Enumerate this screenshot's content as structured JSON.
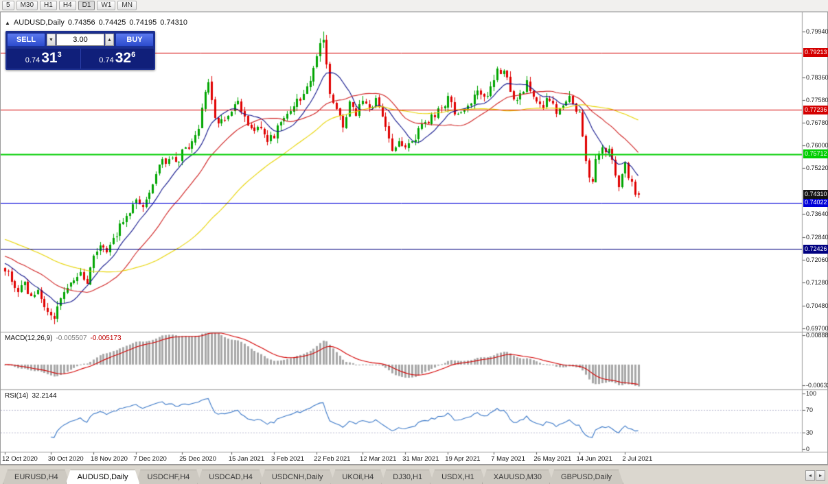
{
  "toolbar": {
    "timeframes": [
      "5",
      "M30",
      "H1",
      "H4",
      "D1",
      "W1",
      "MN"
    ],
    "active": "D1"
  },
  "symbol_line": {
    "marker": "▲",
    "symbol": "AUDUSD,Daily",
    "open": "0.74356",
    "high": "0.74425",
    "low": "0.74195",
    "close": "0.74310"
  },
  "trade_panel": {
    "sell_label": "SELL",
    "buy_label": "BUY",
    "lot_size": "3.00",
    "spin_down": "▼",
    "spin_up": "▲",
    "sell_price": {
      "base": "0.74",
      "pips": "31",
      "fraction": "3"
    },
    "buy_price": {
      "base": "0.74",
      "pips": "32",
      "fraction": "6"
    }
  },
  "price_scale": {
    "ticks": [
      "0.79940",
      "0.78360",
      "0.77580",
      "0.76780",
      "0.76000",
      "0.75220",
      "0.73640",
      "0.72840",
      "0.72060",
      "0.71280",
      "0.70480",
      "0.69700"
    ]
  },
  "hlines": [
    {
      "label": "0.79213",
      "price": 0.79213,
      "color": "#d40000",
      "width": 1
    },
    {
      "label": "0.77236",
      "price": 0.77236,
      "color": "#d40000",
      "width": 1
    },
    {
      "label": "0.75712",
      "price": 0.75712,
      "color": "#00ce00",
      "width": 2
    },
    {
      "label": "0.74022",
      "price": 0.74022,
      "color": "#0000d8",
      "width": 1
    },
    {
      "label": "0.72426",
      "price": 0.72426,
      "color": "#000080",
      "width": 1
    }
  ],
  "current_price": {
    "label": "0.74310",
    "price": 0.7431,
    "bg": "#141414"
  },
  "macd": {
    "name": "MACD(12,26,9)",
    "value_main": "-0.005507",
    "value_signal": "-0.005173",
    "fast": 12,
    "slow": 26,
    "signal": 9,
    "range": [
      -0.0075,
      0.0095
    ],
    "histogram_color": "#a8a8a8",
    "signal_color": "#d40000",
    "scale_labels": [
      {
        "text": "0.008887",
        "value": 0.008887
      },
      {
        "text": "-0.00632",
        "value": -0.00632
      }
    ]
  },
  "rsi": {
    "name": "RSI(14)",
    "value": "32.2144",
    "period": 14,
    "color": "#3a78c8",
    "range": [
      -5,
      105
    ],
    "levels": [
      70,
      30
    ],
    "scale_labels": [
      {
        "text": "100",
        "value": 100
      },
      {
        "text": "70",
        "value": 70
      },
      {
        "text": "30",
        "value": 30
      },
      {
        "text": "0",
        "value": 0
      }
    ]
  },
  "time_axis": {
    "labels": [
      {
        "text": "12 Oct 2020",
        "index": 0
      },
      {
        "text": "30 Oct 2020",
        "index": 14
      },
      {
        "text": "18 Nov 2020",
        "index": 27
      },
      {
        "text": "7 Dec 2020",
        "index": 40
      },
      {
        "text": "25 Dec 2020",
        "index": 54
      },
      {
        "text": "15 Jan 2021",
        "index": 69
      },
      {
        "text": "3 Feb 2021",
        "index": 82
      },
      {
        "text": "22 Feb 2021",
        "index": 95
      },
      {
        "text": "12 Mar 2021",
        "index": 109
      },
      {
        "text": "31 Mar 2021",
        "index": 122
      },
      {
        "text": "19 Apr 2021",
        "index": 135
      },
      {
        "text": "7 May 2021",
        "index": 149
      },
      {
        "text": "26 May 2021",
        "index": 162
      },
      {
        "text": "14 Jun 2021",
        "index": 175
      },
      {
        "text": "2 Jul 2021",
        "index": 189
      }
    ]
  },
  "chart_data": {
    "type": "candlestick",
    "symbol": "AUDUSD",
    "timeframe": "Daily",
    "candle_count": 194,
    "price_range": [
      0.6957,
      0.806
    ],
    "bull_color": "#00a500",
    "bear_color": "#e00000",
    "last_candle": {
      "open": 0.74356,
      "high": 0.74425,
      "low": 0.74195,
      "close": 0.7431
    },
    "forced_points": {
      "15": {
        "low": 0.6983
      },
      "97": {
        "high": 0.7994
      }
    },
    "anchors": [
      [
        0,
        0.7175
      ],
      [
        2,
        0.714
      ],
      [
        4,
        0.709
      ],
      [
        6,
        0.7125
      ],
      [
        8,
        0.707
      ],
      [
        10,
        0.71
      ],
      [
        12,
        0.704
      ],
      [
        14,
        0.701
      ],
      [
        15,
        0.699
      ],
      [
        16,
        0.704
      ],
      [
        18,
        0.708
      ],
      [
        20,
        0.712
      ],
      [
        23,
        0.716
      ],
      [
        25,
        0.713
      ],
      [
        27,
        0.723
      ],
      [
        29,
        0.726
      ],
      [
        31,
        0.722
      ],
      [
        34,
        0.73
      ],
      [
        37,
        0.736
      ],
      [
        40,
        0.742
      ],
      [
        42,
        0.74
      ],
      [
        44,
        0.743
      ],
      [
        47,
        0.753
      ],
      [
        50,
        0.756
      ],
      [
        52,
        0.753
      ],
      [
        54,
        0.758
      ],
      [
        57,
        0.76
      ],
      [
        59,
        0.766
      ],
      [
        61,
        0.779
      ],
      [
        62,
        0.781
      ],
      [
        64,
        0.77
      ],
      [
        66,
        0.768
      ],
      [
        69,
        0.772
      ],
      [
        71,
        0.775
      ],
      [
        73,
        0.769
      ],
      [
        75,
        0.765
      ],
      [
        77,
        0.768
      ],
      [
        80,
        0.762
      ],
      [
        82,
        0.763
      ],
      [
        84,
        0.768
      ],
      [
        86,
        0.772
      ],
      [
        88,
        0.774
      ],
      [
        90,
        0.776
      ],
      [
        92,
        0.78
      ],
      [
        94,
        0.787
      ],
      [
        96,
        0.794
      ],
      [
        97,
        0.7965
      ],
      [
        98,
        0.787
      ],
      [
        99,
        0.778
      ],
      [
        101,
        0.773
      ],
      [
        103,
        0.766
      ],
      [
        105,
        0.774
      ],
      [
        107,
        0.771
      ],
      [
        109,
        0.776
      ],
      [
        111,
        0.773
      ],
      [
        113,
        0.775
      ],
      [
        115,
        0.77
      ],
      [
        117,
        0.762
      ],
      [
        118,
        0.759
      ],
      [
        120,
        0.762
      ],
      [
        122,
        0.76
      ],
      [
        124,
        0.7615
      ],
      [
        127,
        0.766
      ],
      [
        130,
        0.77
      ],
      [
        133,
        0.773
      ],
      [
        135,
        0.776
      ],
      [
        137,
        0.772
      ],
      [
        139,
        0.77
      ],
      [
        141,
        0.7745
      ],
      [
        144,
        0.778
      ],
      [
        146,
        0.7755
      ],
      [
        149,
        0.784
      ],
      [
        151,
        0.786
      ],
      [
        153,
        0.783
      ],
      [
        155,
        0.775
      ],
      [
        157,
        0.778
      ],
      [
        159,
        0.781
      ],
      [
        161,
        0.778
      ],
      [
        162,
        0.775
      ],
      [
        164,
        0.774
      ],
      [
        166,
        0.776
      ],
      [
        168,
        0.77
      ],
      [
        170,
        0.774
      ],
      [
        172,
        0.776
      ],
      [
        174,
        0.773
      ],
      [
        175,
        0.771
      ],
      [
        176,
        0.764
      ],
      [
        177,
        0.756
      ],
      [
        178,
        0.75
      ],
      [
        179,
        0.748
      ],
      [
        180,
        0.754
      ],
      [
        182,
        0.758
      ],
      [
        184,
        0.759
      ],
      [
        185,
        0.756
      ],
      [
        186,
        0.75
      ],
      [
        187,
        0.747
      ],
      [
        188,
        0.75
      ],
      [
        189,
        0.753
      ],
      [
        190,
        0.749
      ],
      [
        191,
        0.747
      ],
      [
        192,
        0.744
      ],
      [
        193,
        0.7431
      ]
    ],
    "moving_averages": [
      {
        "period": 10,
        "color": "#10148c"
      },
      {
        "period": 24,
        "color": "#d02020"
      },
      {
        "period": 55,
        "color": "#e8d400"
      }
    ]
  },
  "tab_bar": {
    "tabs": [
      "EURUSD,H4",
      "AUDUSD,Daily",
      "USDCHF,H4",
      "USDCAD,H4",
      "USDCNH,Daily",
      "UKOil,H4",
      "DJ30,H1",
      "USDX,H1",
      "XAUUSD,M30",
      "GBPUSD,Daily"
    ],
    "active_index": 1,
    "scroll_left": "◂",
    "scroll_right": "▸"
  }
}
